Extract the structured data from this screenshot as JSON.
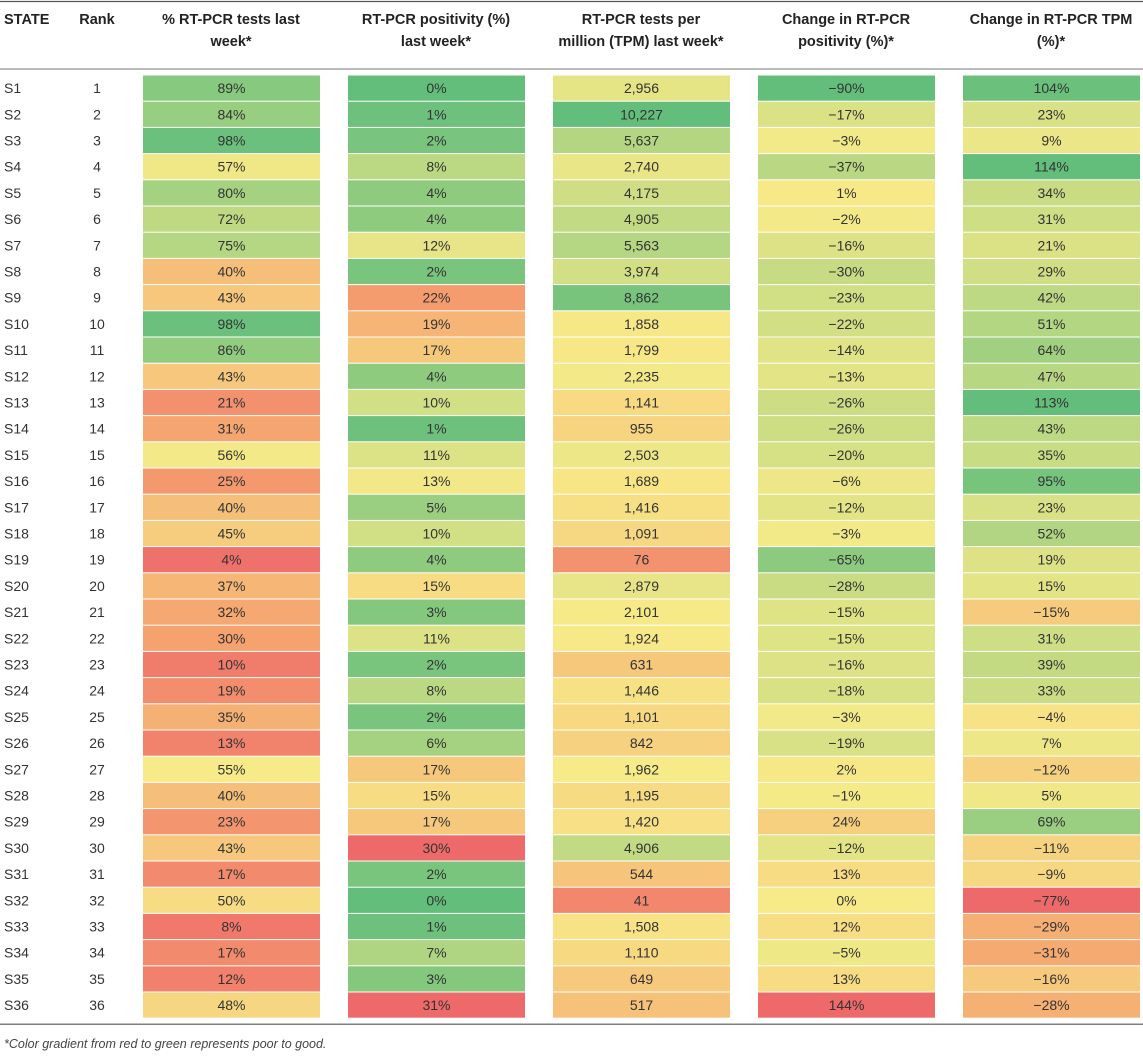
{
  "chart_data": {
    "type": "table",
    "headers": [
      "STATE",
      "Rank",
      "% RT-PCR tests last week*",
      "RT-PCR positivity (%) last week*",
      "RT-PCR tests per million (TPM) last week*",
      "Change in RT-PCR positivity (%)*",
      "Change in RT-PCR TPM (%)*"
    ],
    "header_lines": [
      [
        "STATE"
      ],
      [
        "Rank"
      ],
      [
        "% RT-PCR tests last",
        "week*"
      ],
      [
        "RT-PCR positivity (%)",
        "last week*"
      ],
      [
        "RT-PCR tests per",
        "million (TPM) last week*"
      ],
      [
        "Change in RT-PCR",
        "positivity (%)*"
      ],
      [
        "Change in RT-PCR TPM",
        "(%)*"
      ]
    ],
    "rows": [
      {
        "state": "S1",
        "rank": "1",
        "pct_rtpcr": "89%",
        "positivity": "0%",
        "tpm": "2,956",
        "change_positivity": "−90%",
        "change_tpm": "104%"
      },
      {
        "state": "S2",
        "rank": "2",
        "pct_rtpcr": "84%",
        "positivity": "1%",
        "tpm": "10,227",
        "change_positivity": "−17%",
        "change_tpm": "23%"
      },
      {
        "state": "S3",
        "rank": "3",
        "pct_rtpcr": "98%",
        "positivity": "2%",
        "tpm": "5,637",
        "change_positivity": "−3%",
        "change_tpm": "9%"
      },
      {
        "state": "S4",
        "rank": "4",
        "pct_rtpcr": "57%",
        "positivity": "8%",
        "tpm": "2,740",
        "change_positivity": "−37%",
        "change_tpm": "114%"
      },
      {
        "state": "S5",
        "rank": "5",
        "pct_rtpcr": "80%",
        "positivity": "4%",
        "tpm": "4,175",
        "change_positivity": "1%",
        "change_tpm": "34%"
      },
      {
        "state": "S6",
        "rank": "6",
        "pct_rtpcr": "72%",
        "positivity": "4%",
        "tpm": "4,905",
        "change_positivity": "−2%",
        "change_tpm": "31%"
      },
      {
        "state": "S7",
        "rank": "7",
        "pct_rtpcr": "75%",
        "positivity": "12%",
        "tpm": "5,563",
        "change_positivity": "−16%",
        "change_tpm": "21%"
      },
      {
        "state": "S8",
        "rank": "8",
        "pct_rtpcr": "40%",
        "positivity": "2%",
        "tpm": "3,974",
        "change_positivity": "−30%",
        "change_tpm": "29%"
      },
      {
        "state": "S9",
        "rank": "9",
        "pct_rtpcr": "43%",
        "positivity": "22%",
        "tpm": "8,862",
        "change_positivity": "−23%",
        "change_tpm": "42%"
      },
      {
        "state": "S10",
        "rank": "10",
        "pct_rtpcr": "98%",
        "positivity": "19%",
        "tpm": "1,858",
        "change_positivity": "−22%",
        "change_tpm": "51%"
      },
      {
        "state": "S11",
        "rank": "11",
        "pct_rtpcr": "86%",
        "positivity": "17%",
        "tpm": "1,799",
        "change_positivity": "−14%",
        "change_tpm": "64%"
      },
      {
        "state": "S12",
        "rank": "12",
        "pct_rtpcr": "43%",
        "positivity": "4%",
        "tpm": "2,235",
        "change_positivity": "−13%",
        "change_tpm": "47%"
      },
      {
        "state": "S13",
        "rank": "13",
        "pct_rtpcr": "21%",
        "positivity": "10%",
        "tpm": "1,141",
        "change_positivity": "−26%",
        "change_tpm": "113%"
      },
      {
        "state": "S14",
        "rank": "14",
        "pct_rtpcr": "31%",
        "positivity": "1%",
        "tpm": "955",
        "change_positivity": "−26%",
        "change_tpm": "43%"
      },
      {
        "state": "S15",
        "rank": "15",
        "pct_rtpcr": "56%",
        "positivity": "11%",
        "tpm": "2,503",
        "change_positivity": "−20%",
        "change_tpm": "35%"
      },
      {
        "state": "S16",
        "rank": "16",
        "pct_rtpcr": "25%",
        "positivity": "13%",
        "tpm": "1,689",
        "change_positivity": "−6%",
        "change_tpm": "95%"
      },
      {
        "state": "S17",
        "rank": "17",
        "pct_rtpcr": "40%",
        "positivity": "5%",
        "tpm": "1,416",
        "change_positivity": "−12%",
        "change_tpm": "23%"
      },
      {
        "state": "S18",
        "rank": "18",
        "pct_rtpcr": "45%",
        "positivity": "10%",
        "tpm": "1,091",
        "change_positivity": "−3%",
        "change_tpm": "52%"
      },
      {
        "state": "S19",
        "rank": "19",
        "pct_rtpcr": "4%",
        "positivity": "4%",
        "tpm": "76",
        "change_positivity": "−65%",
        "change_tpm": "19%"
      },
      {
        "state": "S20",
        "rank": "20",
        "pct_rtpcr": "37%",
        "positivity": "15%",
        "tpm": "2,879",
        "change_positivity": "−28%",
        "change_tpm": "15%"
      },
      {
        "state": "S21",
        "rank": "21",
        "pct_rtpcr": "32%",
        "positivity": "3%",
        "tpm": "2,101",
        "change_positivity": "−15%",
        "change_tpm": "−15%"
      },
      {
        "state": "S22",
        "rank": "22",
        "pct_rtpcr": "30%",
        "positivity": "11%",
        "tpm": "1,924",
        "change_positivity": "−15%",
        "change_tpm": "31%"
      },
      {
        "state": "S23",
        "rank": "23",
        "pct_rtpcr": "10%",
        "positivity": "2%",
        "tpm": "631",
        "change_positivity": "−16%",
        "change_tpm": "39%"
      },
      {
        "state": "S24",
        "rank": "24",
        "pct_rtpcr": "19%",
        "positivity": "8%",
        "tpm": "1,446",
        "change_positivity": "−18%",
        "change_tpm": "33%"
      },
      {
        "state": "S25",
        "rank": "25",
        "pct_rtpcr": "35%",
        "positivity": "2%",
        "tpm": "1,101",
        "change_positivity": "−3%",
        "change_tpm": "−4%"
      },
      {
        "state": "S26",
        "rank": "26",
        "pct_rtpcr": "13%",
        "positivity": "6%",
        "tpm": "842",
        "change_positivity": "−19%",
        "change_tpm": "7%"
      },
      {
        "state": "S27",
        "rank": "27",
        "pct_rtpcr": "55%",
        "positivity": "17%",
        "tpm": "1,962",
        "change_positivity": "2%",
        "change_tpm": "−12%"
      },
      {
        "state": "S28",
        "rank": "28",
        "pct_rtpcr": "40%",
        "positivity": "15%",
        "tpm": "1,195",
        "change_positivity": "−1%",
        "change_tpm": "5%"
      },
      {
        "state": "S29",
        "rank": "29",
        "pct_rtpcr": "23%",
        "positivity": "17%",
        "tpm": "1,420",
        "change_positivity": "24%",
        "change_tpm": "69%"
      },
      {
        "state": "S30",
        "rank": "30",
        "pct_rtpcr": "43%",
        "positivity": "30%",
        "tpm": "4,906",
        "change_positivity": "−12%",
        "change_tpm": "−11%"
      },
      {
        "state": "S31",
        "rank": "31",
        "pct_rtpcr": "17%",
        "positivity": "2%",
        "tpm": "544",
        "change_positivity": "13%",
        "change_tpm": "−9%"
      },
      {
        "state": "S32",
        "rank": "32",
        "pct_rtpcr": "50%",
        "positivity": "0%",
        "tpm": "41",
        "change_positivity": "0%",
        "change_tpm": "−77%"
      },
      {
        "state": "S33",
        "rank": "33",
        "pct_rtpcr": "8%",
        "positivity": "1%",
        "tpm": "1,508",
        "change_positivity": "12%",
        "change_tpm": "−29%"
      },
      {
        "state": "S34",
        "rank": "34",
        "pct_rtpcr": "17%",
        "positivity": "7%",
        "tpm": "1,110",
        "change_positivity": "−5%",
        "change_tpm": "−31%"
      },
      {
        "state": "S35",
        "rank": "35",
        "pct_rtpcr": "12%",
        "positivity": "3%",
        "tpm": "649",
        "change_positivity": "13%",
        "change_tpm": "−16%"
      },
      {
        "state": "S36",
        "rank": "36",
        "pct_rtpcr": "48%",
        "positivity": "31%",
        "tpm": "517",
        "change_positivity": "144%",
        "change_tpm": "−28%"
      }
    ],
    "color_scale": {
      "red": "#ee6a6a",
      "orange": "#f5a26f",
      "yellow": "#f7ea88",
      "green": "#63be7b"
    },
    "footnote": "*Color gradient from red to green represents poor to good."
  }
}
